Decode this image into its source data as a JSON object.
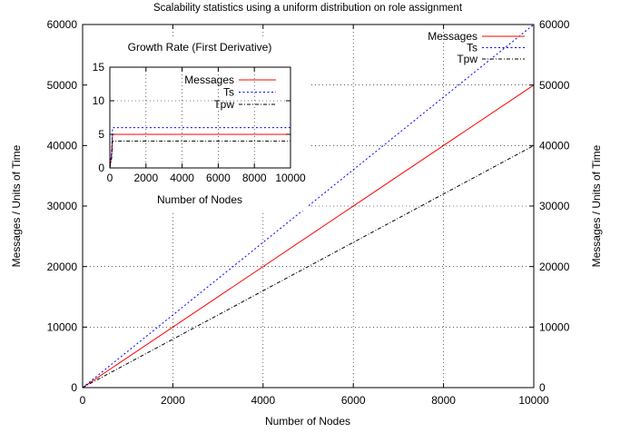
{
  "chart_data": [
    {
      "type": "line",
      "title": "Scalability statistics using a uniform distribution on role assignment",
      "xlabel": "Number of Nodes",
      "ylabel": "Messages / Units of Time",
      "y2label": "Messages / Units of Time",
      "xlim": [
        0,
        10000
      ],
      "ylim": [
        0,
        60000
      ],
      "xticks": [
        0,
        2000,
        4000,
        6000,
        8000,
        10000
      ],
      "yticks": [
        0,
        10000,
        20000,
        30000,
        40000,
        50000,
        60000
      ],
      "grid": true,
      "legend_position": "top-right",
      "series": [
        {
          "name": "Messages",
          "color": "#ff0000",
          "dash": "solid",
          "x": [
            0,
            10000
          ],
          "y": [
            0,
            50000
          ]
        },
        {
          "name": "Ts",
          "color": "#0000ff",
          "dash": "dotted",
          "x": [
            0,
            10000
          ],
          "y": [
            0,
            60000
          ]
        },
        {
          "name": "Tpw",
          "color": "#000000",
          "dash": "dash-dot",
          "x": [
            0,
            10000
          ],
          "y": [
            0,
            40000
          ]
        }
      ]
    },
    {
      "type": "line",
      "title": "Growth Rate (First Derivative)",
      "xlabel": "Number of Nodes",
      "ylabel": "",
      "xlim": [
        0,
        10000
      ],
      "ylim": [
        0,
        15
      ],
      "xticks": [
        0,
        2000,
        4000,
        6000,
        8000,
        10000
      ],
      "yticks": [
        0,
        5,
        10,
        15
      ],
      "grid": true,
      "legend_position": "top-right",
      "series": [
        {
          "name": "Messages",
          "color": "#ff0000",
          "dash": "solid",
          "x": [
            0,
            100,
            150,
            10000
          ],
          "y": [
            0,
            2,
            5,
            5
          ]
        },
        {
          "name": "Ts",
          "color": "#0000ff",
          "dash": "dotted",
          "x": [
            0,
            100,
            150,
            10000
          ],
          "y": [
            0,
            2.5,
            6,
            6
          ]
        },
        {
          "name": "Tpw",
          "color": "#000000",
          "dash": "dash-dot",
          "x": [
            0,
            100,
            150,
            10000
          ],
          "y": [
            0,
            1.5,
            4,
            4
          ]
        }
      ]
    }
  ]
}
